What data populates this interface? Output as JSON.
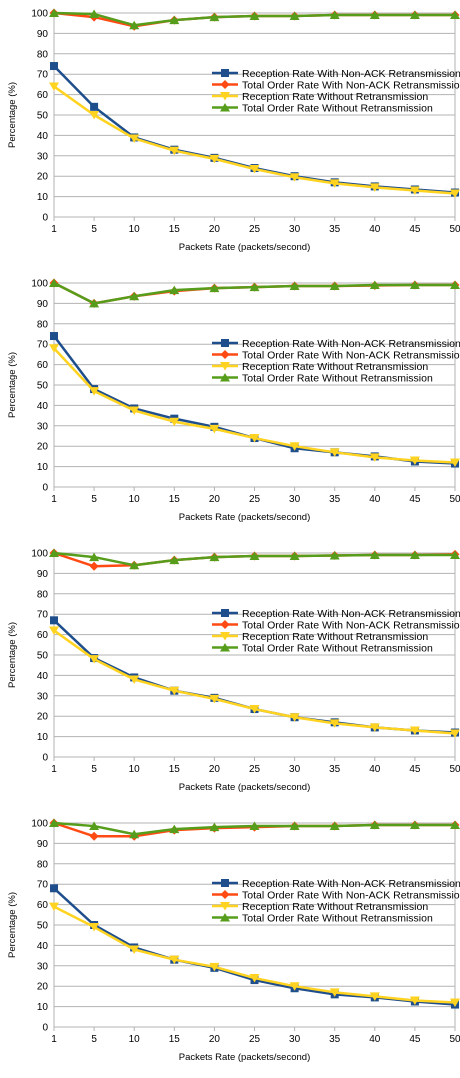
{
  "chart_data": [
    {
      "type": "line",
      "xlabel": "Packets Rate (packets/second)",
      "ylabel": "Percentage (%)",
      "ylim": [
        0,
        100
      ],
      "yticks": [
        0,
        10,
        20,
        30,
        40,
        50,
        60,
        70,
        80,
        90,
        100
      ],
      "x": [
        1,
        5,
        10,
        15,
        20,
        25,
        30,
        35,
        40,
        45,
        50
      ],
      "legend_position": "right",
      "grid": true,
      "series": [
        {
          "name": "Reception Rate With Non-ACK Retransmission",
          "color": "#1f4e8c",
          "marker": "square",
          "values": [
            74,
            54,
            39,
            33,
            29,
            24,
            20,
            17,
            15,
            13.5,
            12
          ]
        },
        {
          "name": "Total Order Rate With Non-ACK Retransmission",
          "color": "#ff4a14",
          "marker": "diamond",
          "values": [
            100,
            98,
            93.5,
            96.5,
            98,
            98.5,
            98.5,
            99,
            99,
            99,
            99
          ]
        },
        {
          "name": "Reception Rate Without Retransmission",
          "color": "#ffd320",
          "marker": "triangle-down",
          "values": [
            64,
            50,
            38.5,
            32.5,
            28.5,
            23.5,
            19.5,
            16.5,
            14.5,
            13,
            11.5
          ]
        },
        {
          "name": "Total Order Rate Without Retransmission",
          "color": "#579d1c",
          "marker": "triangle-up",
          "values": [
            100,
            99.5,
            94,
            96.5,
            98,
            98.5,
            98.5,
            99,
            99,
            99,
            99
          ]
        }
      ]
    },
    {
      "type": "line",
      "xlabel": "Packets Rate (packets/second)",
      "ylabel": "Percentage (%)",
      "ylim": [
        0,
        100
      ],
      "yticks": [
        0,
        10,
        20,
        30,
        40,
        50,
        60,
        70,
        80,
        90,
        100
      ],
      "x": [
        1,
        5,
        10,
        15,
        20,
        25,
        30,
        35,
        40,
        45,
        50
      ],
      "legend_position": "right",
      "grid": true,
      "series": [
        {
          "name": "Reception Rate With Non-ACK Retransmission",
          "color": "#1f4e8c",
          "marker": "square",
          "values": [
            74,
            48,
            38.5,
            33.5,
            29.5,
            24,
            19,
            17,
            15,
            12.5,
            11.5
          ]
        },
        {
          "name": "Total Order Rate With Non-ACK Retransmission",
          "color": "#ff4a14",
          "marker": "diamond",
          "values": [
            100,
            90,
            93.5,
            96,
            97.5,
            98,
            98.5,
            98.5,
            98.8,
            99,
            99
          ]
        },
        {
          "name": "Reception Rate Without Retransmission",
          "color": "#ffd320",
          "marker": "triangle-down",
          "values": [
            68,
            47,
            37.5,
            32,
            28.5,
            24,
            20,
            17,
            14.5,
            13,
            12
          ]
        },
        {
          "name": "Total Order Rate Without Retransmission",
          "color": "#579d1c",
          "marker": "triangle-up",
          "values": [
            100,
            90,
            93.5,
            96.5,
            97.5,
            98,
            98.5,
            98.5,
            99,
            99,
            99
          ]
        }
      ]
    },
    {
      "type": "line",
      "xlabel": "Packets Rate (packets/second)",
      "ylabel": "Percentage (%)",
      "ylim": [
        0,
        100
      ],
      "yticks": [
        0,
        10,
        20,
        30,
        40,
        50,
        60,
        70,
        80,
        90,
        100
      ],
      "x": [
        1,
        5,
        10,
        15,
        20,
        25,
        30,
        35,
        40,
        45,
        50
      ],
      "legend_position": "right",
      "grid": true,
      "series": [
        {
          "name": "Reception Rate With Non-ACK Retransmission",
          "color": "#1f4e8c",
          "marker": "square",
          "values": [
            67,
            48.5,
            39,
            32.5,
            29,
            23.5,
            19.5,
            17,
            14.5,
            13,
            12
          ]
        },
        {
          "name": "Total Order Rate With Non-ACK Retransmission",
          "color": "#ff4a14",
          "marker": "diamond",
          "values": [
            100,
            93.5,
            94,
            96.5,
            98,
            98.5,
            98.5,
            98.8,
            99,
            99,
            99.3
          ]
        },
        {
          "name": "Reception Rate Without Retransmission",
          "color": "#ffd320",
          "marker": "triangle-down",
          "values": [
            62,
            48,
            38,
            32.5,
            28.5,
            23.5,
            19.5,
            16.5,
            14.5,
            13,
            11.5
          ]
        },
        {
          "name": "Total Order Rate Without Retransmission",
          "color": "#579d1c",
          "marker": "triangle-up",
          "values": [
            100,
            98,
            94,
            96.5,
            98,
            98.5,
            98.5,
            98.8,
            99,
            99,
            99
          ]
        }
      ]
    },
    {
      "type": "line",
      "xlabel": "Packets Rate (packets/second)",
      "ylabel": "Percentage (%)",
      "ylim": [
        0,
        100
      ],
      "yticks": [
        0,
        10,
        20,
        30,
        40,
        50,
        60,
        70,
        80,
        90,
        100
      ],
      "x": [
        1,
        5,
        10,
        15,
        20,
        25,
        30,
        35,
        40,
        45,
        50
      ],
      "legend_position": "right",
      "grid": true,
      "series": [
        {
          "name": "Reception Rate With Non-ACK Retransmission",
          "color": "#1f4e8c",
          "marker": "square",
          "values": [
            68,
            50,
            39,
            33,
            29,
            23,
            19,
            16,
            14.5,
            12.5,
            11
          ]
        },
        {
          "name": "Total Order Rate With Non-ACK Retransmission",
          "color": "#ff4a14",
          "marker": "diamond",
          "values": [
            100,
            93.5,
            93.5,
            96.5,
            97.5,
            98,
            98.5,
            98.5,
            99,
            99,
            99
          ]
        },
        {
          "name": "Reception Rate Without Retransmission",
          "color": "#ffd320",
          "marker": "triangle-down",
          "values": [
            59,
            49,
            38,
            33,
            29.5,
            24,
            20,
            17,
            15,
            13,
            12
          ]
        },
        {
          "name": "Total Order Rate Without Retransmission",
          "color": "#579d1c",
          "marker": "triangle-up",
          "values": [
            100,
            98.5,
            94.5,
            97,
            98,
            98.5,
            98.5,
            98.5,
            99,
            99,
            99
          ]
        }
      ]
    }
  ]
}
